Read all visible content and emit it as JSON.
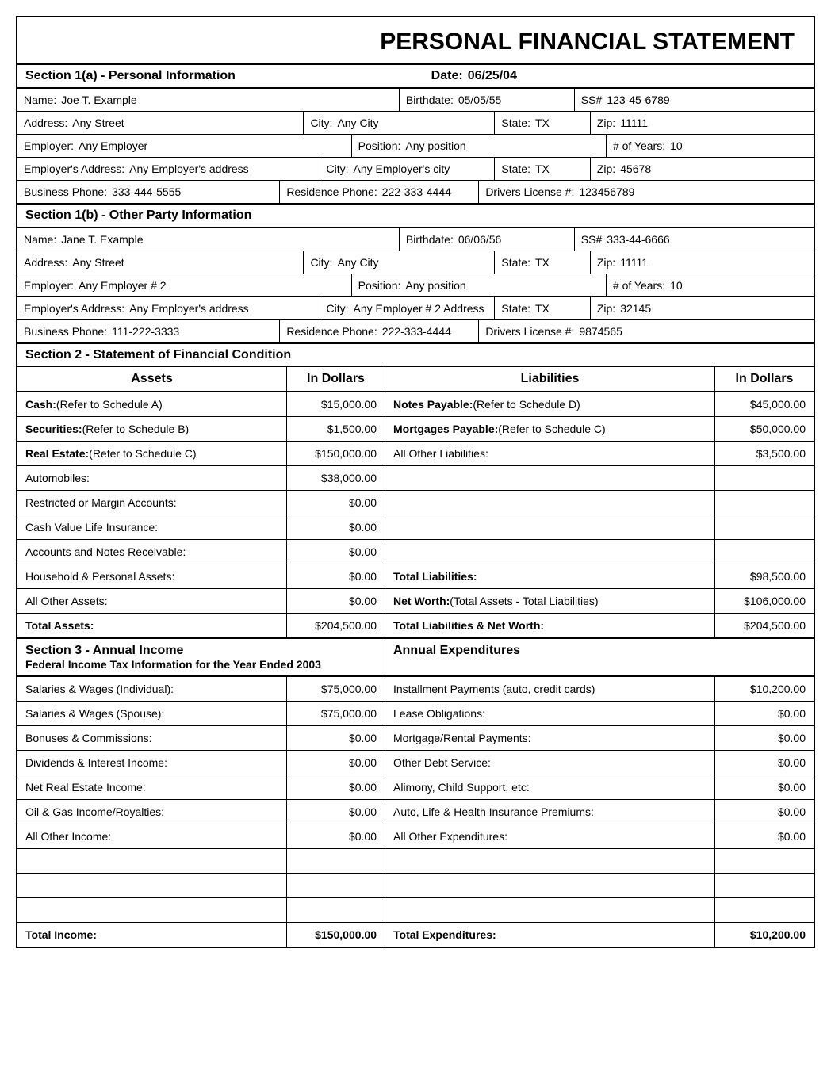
{
  "title": "PERSONAL FINANCIAL STATEMENT",
  "section1a": {
    "header": "Section 1(a) - Personal Information",
    "date_label": "Date:",
    "date": "06/25/04",
    "name_label": "Name:",
    "name": "Joe T. Example",
    "birth_label": "Birthdate:",
    "birth": "05/05/55",
    "ss_label": "SS#",
    "ss": "123-45-6789",
    "addr_label": "Address:",
    "addr": "Any Street",
    "city_label": "City:",
    "city": "Any City",
    "state_label": "State:",
    "state": "TX",
    "zip_label": "Zip:",
    "zip": "11111",
    "emp_label": "Employer:",
    "emp": "Any Employer",
    "pos_label": "Position:",
    "pos": "Any position",
    "yrs_label": "# of Years:",
    "yrs": "10",
    "eaddr_label": "Employer's Address:",
    "eaddr": "Any Employer's address",
    "ecity_label": "City:",
    "ecity": "Any Employer's city",
    "estate_label": "State:",
    "estate": "TX",
    "ezip_label": "Zip:",
    "ezip": "45678",
    "bphone_label": "Business Phone:",
    "bphone": "333-444-5555",
    "rphone_label": "Residence Phone:",
    "rphone": "222-333-4444",
    "dl_label": "Drivers License #:",
    "dl": "123456789"
  },
  "section1b": {
    "header": "Section 1(b) - Other Party Information",
    "name_label": "Name:",
    "name": "Jane T. Example",
    "birth_label": "Birthdate:",
    "birth": "06/06/56",
    "ss_label": "SS#",
    "ss": "333-44-6666",
    "addr_label": "Address:",
    "addr": "Any Street",
    "city_label": "City:",
    "city": "Any City",
    "state_label": "State:",
    "state": "TX",
    "zip_label": "Zip:",
    "zip": "11111",
    "emp_label": "Employer:",
    "emp": "Any Employer # 2",
    "pos_label": "Position:",
    "pos": "Any position",
    "yrs_label": "# of Years:",
    "yrs": "10",
    "eaddr_label": "Employer's Address:",
    "eaddr": "Any Employer's address",
    "ecity_label": "City:",
    "ecity": "Any Employer # 2 Address",
    "estate_label": "State:",
    "estate": "TX",
    "ezip_label": "Zip:",
    "ezip": "32145",
    "bphone_label": "Business Phone:",
    "bphone": "111-222-3333",
    "rphone_label": "Residence Phone:",
    "rphone": "222-333-4444",
    "dl_label": "Drivers License #:",
    "dl": "9874565"
  },
  "section2": {
    "header": "Section 2 - Statement of Financial Condition",
    "col_assets": "Assets",
    "col_in_dollars": "In Dollars",
    "col_liabilities": "Liabilities",
    "col_in_dollars2": "In Dollars",
    "rows": [
      {
        "al_b": "Cash:",
        "al": " (Refer to Schedule A)",
        "ad": "$15,000.00",
        "ll_b": "Notes Payable:",
        "ll": " (Refer to Schedule D)",
        "ld": "$45,000.00"
      },
      {
        "al_b": "Securities:",
        "al": " (Refer to Schedule B)",
        "ad": "$1,500.00",
        "ll_b": "Mortgages Payable:",
        "ll": "  (Refer to Schedule C)",
        "ld": "$50,000.00"
      },
      {
        "al_b": "Real Estate:",
        "al": " (Refer to Schedule C)",
        "ad": "$150,000.00",
        "ll_b": "",
        "ll": "All Other Liabilities:",
        "ld": "$3,500.00"
      },
      {
        "al_b": "",
        "al": "Automobiles:",
        "ad": "$38,000.00",
        "ll_b": "",
        "ll": "",
        "ld": ""
      },
      {
        "al_b": "",
        "al": "Restricted or Margin Accounts:",
        "ad": "$0.00",
        "ll_b": "",
        "ll": "",
        "ld": ""
      },
      {
        "al_b": "",
        "al": "Cash Value Life Insurance:",
        "ad": "$0.00",
        "ll_b": "",
        "ll": "",
        "ld": ""
      },
      {
        "al_b": "",
        "al": "Accounts and Notes Receivable:",
        "ad": "$0.00",
        "ll_b": "",
        "ll": "",
        "ld": ""
      },
      {
        "al_b": "",
        "al": "Household & Personal Assets:",
        "ad": "$0.00",
        "ll_b": "Total Liabilities:",
        "ll": "",
        "ld": "$98,500.00"
      },
      {
        "al_b": "",
        "al": "All Other Assets:",
        "ad": "$0.00",
        "ll_b": "Net Worth:",
        "ll": "  (Total Assets - Total Liabilities)",
        "ld": "$106,000.00"
      }
    ],
    "total_assets_label": "Total Assets:",
    "total_assets": "$204,500.00",
    "total_liab_label": "Total Liabilities & Net Worth:",
    "total_liab": "$204,500.00"
  },
  "section3": {
    "header": "Section 3 - Annual Income",
    "sub": "Federal Income Tax Information for the Year Ended 2003",
    "exp_header": "Annual Expenditures",
    "rows": [
      {
        "il": "Salaries & Wages (Individual):",
        "iv": "$75,000.00",
        "el": "Installment Payments (auto, credit cards)",
        "ev": "$10,200.00"
      },
      {
        "il": "Salaries & Wages (Spouse):",
        "iv": "$75,000.00",
        "el": "Lease Obligations:",
        "ev": "$0.00"
      },
      {
        "il": "Bonuses & Commissions:",
        "iv": "$0.00",
        "el": "Mortgage/Rental Payments:",
        "ev": "$0.00"
      },
      {
        "il": "Dividends & Interest Income:",
        "iv": "$0.00",
        "el": "Other Debt Service:",
        "ev": "$0.00"
      },
      {
        "il": "Net Real Estate Income:",
        "iv": "$0.00",
        "el": "Alimony, Child Support, etc:",
        "ev": "$0.00"
      },
      {
        "il": "Oil & Gas Income/Royalties:",
        "iv": "$0.00",
        "el": "Auto, Life & Health Insurance Premiums:",
        "ev": "$0.00"
      },
      {
        "il": "All Other Income:",
        "iv": "$0.00",
        "el": "All Other Expenditures:",
        "ev": "$0.00"
      },
      {
        "il": "",
        "iv": "",
        "el": "",
        "ev": ""
      },
      {
        "il": "",
        "iv": "",
        "el": "",
        "ev": ""
      },
      {
        "il": "",
        "iv": "",
        "el": "",
        "ev": ""
      }
    ],
    "total_income_label": "Total Income:",
    "total_income": "$150,000.00",
    "total_exp_label": "Total Expenditures:",
    "total_exp": "$10,200.00"
  }
}
